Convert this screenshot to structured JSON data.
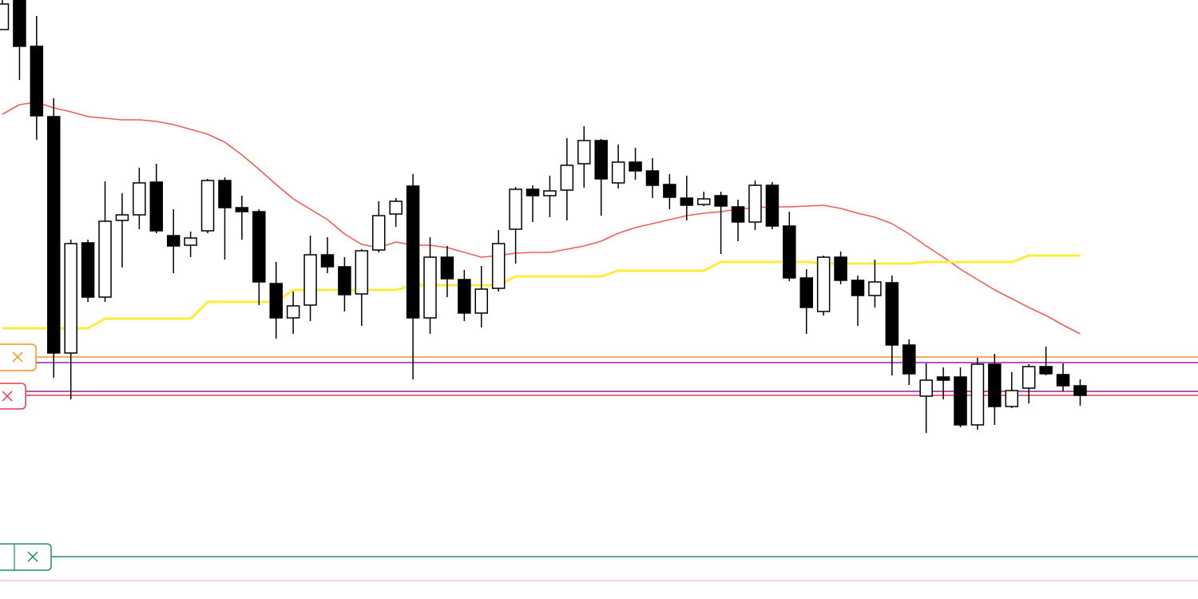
{
  "chart_data": {
    "type": "candlestick",
    "ylim": [
      0,
      750
    ],
    "up_color": "#ffffff",
    "down_color": "#000000",
    "edge_color": "#000000",
    "open": [
      713,
      750,
      692,
      604,
      308,
      446,
      378,
      474,
      481,
      522,
      455,
      443,
      461,
      524,
      490,
      485,
      395,
      352,
      368,
      431,
      416,
      382,
      437,
      482,
      517,
      352,
      428,
      400,
      358,
      389,
      463,
      513,
      505,
      512,
      545,
      574,
      521,
      547,
      536,
      519,
      502,
      494,
      505,
      491,
      472,
      518,
      467,
      402,
      360,
      428,
      399,
      380,
      396,
      318,
      254,
      278,
      278,
      218,
      294,
      241,
      264,
      291,
      281,
      267
    ],
    "high": [
      750,
      750,
      730,
      627,
      450,
      450,
      523,
      508,
      540,
      545,
      488,
      460,
      526,
      528,
      505,
      488,
      422,
      385,
      455,
      453,
      428,
      438,
      498,
      502,
      532,
      453,
      442,
      412,
      417,
      462,
      516,
      518,
      530,
      577,
      592,
      576,
      569,
      565,
      552,
      532,
      530,
      510,
      510,
      500,
      524,
      522,
      485,
      413,
      430,
      435,
      405,
      425,
      405,
      325,
      295,
      290,
      290,
      302,
      307,
      284,
      294,
      316,
      295,
      275
    ],
    "low": [
      713,
      650,
      575,
      277,
      250,
      372,
      372,
      415,
      463,
      458,
      408,
      428,
      458,
      425,
      450,
      368,
      326,
      332,
      348,
      408,
      360,
      342,
      434,
      466,
      275,
      332,
      378,
      348,
      340,
      385,
      420,
      472,
      478,
      474,
      515,
      480,
      514,
      525,
      502,
      488,
      474,
      492,
      432,
      448,
      462,
      463,
      398,
      332,
      355,
      394,
      342,
      365,
      280,
      268,
      208,
      250,
      215,
      212,
      218,
      239,
      245,
      280,
      260,
      242
    ],
    "close": [
      745,
      692,
      605,
      308,
      445,
      378,
      473,
      481,
      521,
      461,
      442,
      452,
      524,
      490,
      485,
      397,
      352,
      367,
      431,
      416,
      381,
      436,
      480,
      498,
      352,
      428,
      401,
      358,
      388,
      445,
      513,
      505,
      511,
      543,
      574,
      526,
      547,
      536,
      518,
      503,
      493,
      501,
      492,
      472,
      518,
      467,
      402,
      365,
      428,
      399,
      380,
      397,
      318,
      282,
      274,
      274,
      218,
      294,
      241,
      261,
      291,
      282,
      267,
      255
    ],
    "series": [
      {
        "type": "line",
        "color": "#f25c5c",
        "values": [
          607,
          619,
          622,
          615,
          610,
          604,
          602,
          600,
          600,
          598,
          594,
          588,
          582,
          572,
          556,
          538,
          519,
          501,
          488,
          475,
          457,
          444,
          440,
          447,
          443,
          443,
          440,
          434,
          428,
          430,
          433,
          434,
          434,
          438,
          442,
          448,
          458,
          465,
          470,
          475,
          480,
          483,
          485,
          488,
          490,
          491,
          491,
          492,
          493,
          489,
          483,
          478,
          470,
          457,
          442,
          428,
          413,
          400,
          387,
          376,
          365,
          355,
          343,
          332
        ]
      },
      {
        "type": "line",
        "color": "#ffeb3b",
        "values": [
          339,
          339,
          339,
          339,
          339,
          339,
          351,
          351,
          351,
          351,
          351,
          351,
          372,
          372,
          372,
          372,
          372,
          387,
          387,
          387,
          387,
          387,
          387,
          387,
          393,
          393,
          393,
          393,
          393,
          393,
          404,
          404,
          404,
          404,
          404,
          404,
          411,
          411,
          411,
          411,
          411,
          411,
          422,
          422,
          422,
          422,
          422,
          422,
          420,
          420,
          420,
          420,
          420,
          420,
          422,
          422,
          422,
          422,
          422,
          422,
          430,
          430,
          430,
          430
        ]
      }
    ],
    "levels": [
      {
        "value": 303,
        "color": "#f7931a"
      },
      {
        "value": 296,
        "color": "#8e24aa"
      },
      {
        "value": 260,
        "color": "#8e24aa"
      },
      {
        "value": 255,
        "color": "#e53950"
      },
      {
        "value": 53,
        "color": "#1e8a74"
      },
      {
        "value": 23,
        "color": "#f8bbd0"
      }
    ]
  }
}
